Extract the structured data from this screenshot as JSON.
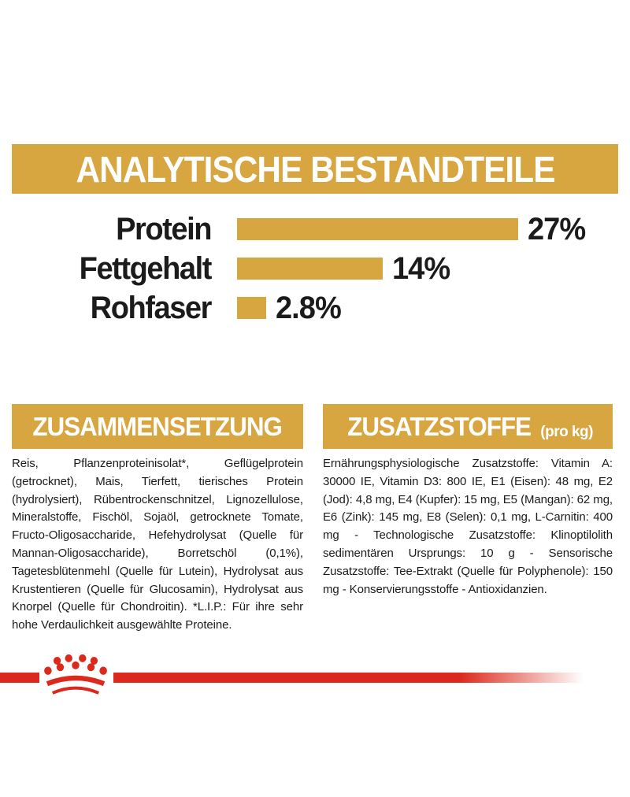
{
  "colors": {
    "gold": "#D8A640",
    "red": "#DB2A1C",
    "text": "#1b1b1b",
    "header_text": "#ffffff"
  },
  "analytical_header": {
    "title": "ANALYTISCHE BESTANDTEILE"
  },
  "chart_data": {
    "type": "bar",
    "orientation": "horizontal",
    "title": "ANALYTISCHE BESTANDTEILE",
    "categories": [
      "Protein",
      "Fettgehalt",
      "Rohfaser"
    ],
    "values": [
      27,
      14,
      2.8
    ],
    "value_labels": [
      "27%",
      "14%",
      "2.8%"
    ],
    "unit": "%",
    "xlim": [
      0,
      27
    ],
    "bar_color": "#D8A640",
    "grid": false,
    "legend": "none"
  },
  "composition": {
    "title": "ZUSAMMENSETZUNG",
    "body": "Reis, Pflanzenproteinisolat*, Geflügelprotein (getrocknet), Mais, Tierfett, tierisches Protein (hydrolysiert), Rübentrockenschnitzel, Lignozellulose, Mineralstoffe, Fischöl, Sojaöl, getrocknete Tomate, Fructo-Oligosaccharide, Hefehydrolysat (Quelle für Mannan-Oligosaccharide), Borretschöl (0,1%), Tagetesblütenmehl (Quelle für Lutein), Hydrolysat aus Krustentieren (Quelle für Glucosamin), Hydrolysat aus Knorpel (Quelle für Chondroitin). *L.I.P.: Für ihre sehr hohe Verdaulichkeit ausgewählte Proteine."
  },
  "additives": {
    "title": "ZUSATZSTOFFE",
    "title_suffix": "(pro kg)",
    "body": "Ernährungsphysiologische Zusatzstoffe: Vitamin A: 30000 IE, Vitamin D3: 800 IE, E1 (Eisen): 48 mg, E2 (Jod): 4,8 mg, E4 (Kupfer): 15 mg, E5 (Mangan): 62 mg, E6 (Zink): 145 mg, E8 (Selen): 0,1 mg, L-Carnitin: 400 mg - Technologische Zusatzstoffe: Klinoptilolith sedimentären Ursprungs: 10 g - Sensorische Zusatzstoffe: Tee-Extrakt (Quelle für Polyphenole): 150 mg - Konservierungsstoffe - Antioxidanzien."
  },
  "footer": {
    "logo": "royal-canin-crown"
  }
}
